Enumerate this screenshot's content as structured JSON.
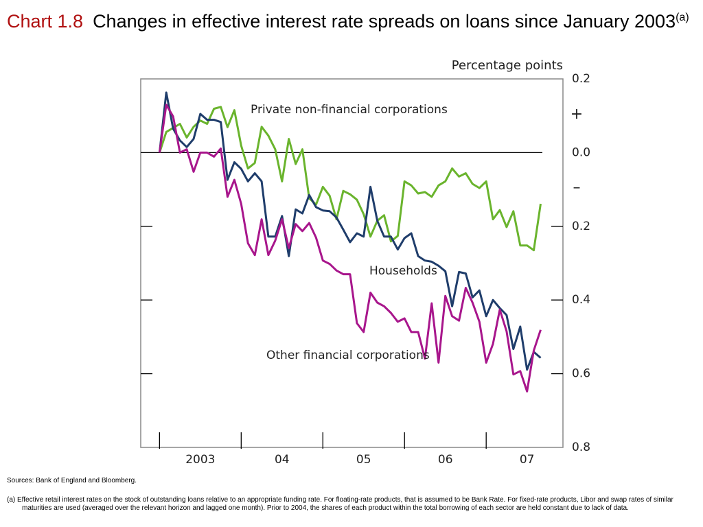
{
  "chart_data": {
    "type": "line",
    "title_label": "Chart 1.8",
    "title": "Changes in effective interest rate spreads on loans since January 2003",
    "title_note": "(a)",
    "y_axis_label": "Percentage points",
    "sign_annotations": [
      "+",
      "–"
    ],
    "x": [
      2003,
      2003.083,
      2003.167,
      2003.25,
      2003.333,
      2003.417,
      2003.5,
      2003.583,
      2003.667,
      2003.75,
      2003.833,
      2003.917,
      2004,
      2004.083,
      2004.167,
      2004.25,
      2004.333,
      2004.417,
      2004.5,
      2004.583,
      2004.667,
      2004.75,
      2004.833,
      2004.917,
      2005,
      2005.083,
      2005.167,
      2005.25,
      2005.333,
      2005.417,
      2005.5,
      2005.583,
      2005.667,
      2005.75,
      2005.833,
      2005.917,
      2006,
      2006.083,
      2006.167,
      2006.25,
      2006.333,
      2006.417,
      2006.5,
      2006.583,
      2006.667,
      2006.75,
      2006.833,
      2006.917,
      2007,
      2007.083,
      2007.167,
      2007.25,
      2007.333,
      2007.417,
      2007.5,
      2007.583,
      2007.667
    ],
    "xlim": [
      2002.77,
      2007.94
    ],
    "xticks": [
      {
        "value": 2003.5,
        "label": "2003"
      },
      {
        "value": 2004.5,
        "label": "04"
      },
      {
        "value": 2005.5,
        "label": "05"
      },
      {
        "value": 2006.5,
        "label": "06"
      },
      {
        "value": 2007.5,
        "label": "07"
      }
    ],
    "ylim": [
      -0.8,
      0.2
    ],
    "yticks": [
      {
        "value": 0.2,
        "label": "0.2"
      },
      {
        "value": 0,
        "label": "0.0"
      },
      {
        "value": -0.2,
        "label": "0.2"
      },
      {
        "value": -0.4,
        "label": "0.4"
      },
      {
        "value": -0.6,
        "label": "0.6"
      },
      {
        "value": -0.8,
        "label": "0.8"
      }
    ],
    "series": [
      {
        "name": "Private non-financial corporations",
        "color": "#6ab42d",
        "values": [
          0,
          0.056,
          0.067,
          0.078,
          0.041,
          0.07,
          0.087,
          0.078,
          0.119,
          0.124,
          0.069,
          0.115,
          0.019,
          -0.043,
          -0.028,
          0.07,
          0.046,
          0.009,
          -0.078,
          0.037,
          -0.031,
          0.009,
          -0.124,
          -0.141,
          -0.093,
          -0.117,
          -0.181,
          -0.104,
          -0.113,
          -0.128,
          -0.167,
          -0.228,
          -0.185,
          -0.17,
          -0.241,
          -0.226,
          -0.078,
          -0.089,
          -0.111,
          -0.107,
          -0.12,
          -0.089,
          -0.078,
          -0.043,
          -0.065,
          -0.056,
          -0.085,
          -0.096,
          -0.078,
          -0.181,
          -0.156,
          -0.202,
          -0.159,
          -0.252,
          -0.252,
          -0.265,
          -0.139
        ]
      },
      {
        "name": "Households",
        "color": "#1f3d6b",
        "values": [
          0,
          0.163,
          0.065,
          0.033,
          0.015,
          0.037,
          0.105,
          0.089,
          0.089,
          0.083,
          -0.074,
          -0.026,
          -0.044,
          -0.078,
          -0.056,
          -0.078,
          -0.228,
          -0.228,
          -0.172,
          -0.281,
          -0.154,
          -0.165,
          -0.115,
          -0.148,
          -0.157,
          -0.159,
          -0.176,
          -0.209,
          -0.243,
          -0.219,
          -0.228,
          -0.093,
          -0.185,
          -0.228,
          -0.228,
          -0.263,
          -0.232,
          -0.219,
          -0.281,
          -0.293,
          -0.296,
          -0.307,
          -0.322,
          -0.417,
          -0.324,
          -0.328,
          -0.393,
          -0.374,
          -0.444,
          -0.4,
          -0.422,
          -0.441,
          -0.533,
          -0.472,
          -0.589,
          -0.541,
          -0.557
        ]
      },
      {
        "name": "Other financial corporations",
        "color": "#a8168c",
        "values": [
          0,
          0.13,
          0.098,
          0,
          0.009,
          -0.052,
          0,
          0,
          -0.011,
          0.011,
          -0.12,
          -0.074,
          -0.139,
          -0.246,
          -0.278,
          -0.181,
          -0.278,
          -0.239,
          -0.181,
          -0.259,
          -0.194,
          -0.213,
          -0.191,
          -0.231,
          -0.293,
          -0.302,
          -0.32,
          -0.33,
          -0.33,
          -0.463,
          -0.487,
          -0.38,
          -0.407,
          -0.417,
          -0.435,
          -0.459,
          -0.45,
          -0.487,
          -0.487,
          -0.559,
          -0.409,
          -0.57,
          -0.389,
          -0.444,
          -0.456,
          -0.367,
          -0.407,
          -0.459,
          -0.57,
          -0.519,
          -0.426,
          -0.485,
          -0.602,
          -0.593,
          -0.648,
          -0.537,
          -0.481
        ]
      }
    ]
  },
  "sources": "Sources:  Bank of England and Bloomberg.",
  "footnote": "(a)  Effective retail interest rates on the stock of outstanding loans relative to an appropriate funding rate.  For floating-rate products, that is assumed to be Bank Rate.  For fixed-rate products, Libor and swap rates of similar maturities are used (averaged over the relevant horizon and lagged one month).  Prior to 2004, the shares of each product within the total borrowing of each sector are held constant due to lack of data."
}
